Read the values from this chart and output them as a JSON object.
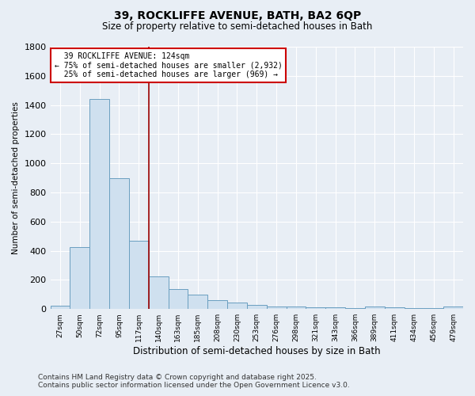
{
  "title": "39, ROCKLIFFE AVENUE, BATH, BA2 6QP",
  "subtitle": "Size of property relative to semi-detached houses in Bath",
  "xlabel": "Distribution of semi-detached houses by size in Bath",
  "ylabel": "Number of semi-detached properties",
  "bar_color": "#cfe0ef",
  "bar_edge_color": "#6a9ec0",
  "background_color": "#e8eef5",
  "grid_color": "#ffffff",
  "categories": [
    "27sqm",
    "50sqm",
    "72sqm",
    "95sqm",
    "117sqm",
    "140sqm",
    "163sqm",
    "185sqm",
    "208sqm",
    "230sqm",
    "253sqm",
    "276sqm",
    "298sqm",
    "321sqm",
    "343sqm",
    "366sqm",
    "389sqm",
    "411sqm",
    "434sqm",
    "456sqm",
    "479sqm"
  ],
  "values": [
    25,
    425,
    1440,
    900,
    470,
    225,
    135,
    100,
    60,
    45,
    30,
    15,
    20,
    12,
    10,
    8,
    15,
    12,
    8,
    8,
    15
  ],
  "ylim": [
    0,
    1800
  ],
  "yticks": [
    0,
    200,
    400,
    600,
    800,
    1000,
    1200,
    1400,
    1600,
    1800
  ],
  "property_line_x": 4.5,
  "property_size": "124sqm",
  "pct_smaller": 75,
  "n_smaller": 2932,
  "pct_larger": 25,
  "n_larger": 969,
  "annotation_box_color": "#ffffff",
  "annotation_box_edge": "#cc0000",
  "red_line_color": "#990000",
  "footer_line1": "Contains HM Land Registry data © Crown copyright and database right 2025.",
  "footer_line2": "Contains public sector information licensed under the Open Government Licence v3.0."
}
